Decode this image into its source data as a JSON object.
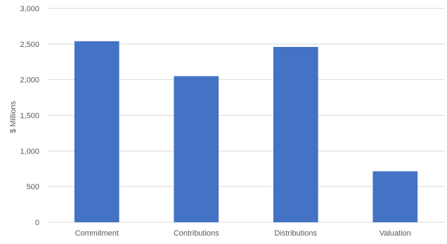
{
  "chart_data": {
    "type": "bar",
    "title": "",
    "xlabel": "",
    "ylabel": "$ Millions",
    "categories": [
      "Commitment",
      "Contributions",
      "Distributions",
      "Valuation"
    ],
    "values": [
      2540,
      2050,
      2460,
      715
    ],
    "ylim": [
      0,
      3000
    ],
    "yticks": [
      0,
      500,
      1000,
      1500,
      2000,
      2500,
      3000
    ],
    "ytick_labels": [
      "0",
      "500",
      "1,000",
      "1,500",
      "2,000",
      "2,500",
      "3,000"
    ],
    "grid": true,
    "legend": "none",
    "bar_color": "#4472C4",
    "grid_color": "#D9D9D9",
    "text_color": "#595959"
  }
}
